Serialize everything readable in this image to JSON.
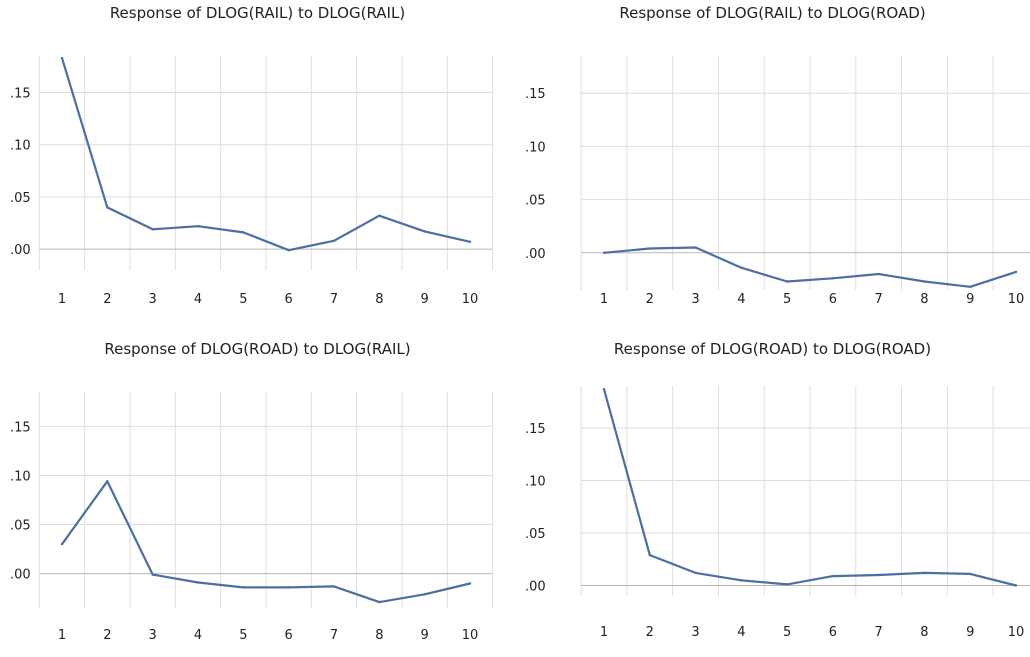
{
  "chart_data": [
    {
      "type": "line",
      "title": "Response of DLOG(RAIL) to DLOG(RAIL)",
      "x": [
        1,
        2,
        3,
        4,
        5,
        6,
        7,
        8,
        9,
        10
      ],
      "values": [
        0.183,
        0.04,
        0.019,
        0.022,
        0.016,
        -0.001,
        0.008,
        0.032,
        0.017,
        0.007
      ],
      "ylim": [
        -0.02,
        0.185
      ],
      "yticks": [
        ".15",
        ".10",
        ".05",
        ".00"
      ],
      "ytick_values": [
        0.15,
        0.1,
        0.05,
        0.0
      ],
      "color": "#4a6fa5",
      "grid": true
    },
    {
      "type": "line",
      "title": "Response of DLOG(RAIL) to DLOG(ROAD)",
      "x": [
        1,
        2,
        3,
        4,
        5,
        6,
        7,
        8,
        9,
        10
      ],
      "values": [
        0.0,
        0.004,
        0.005,
        -0.014,
        -0.027,
        -0.024,
        -0.02,
        -0.027,
        -0.032,
        -0.018
      ],
      "ylim": [
        -0.035,
        0.185
      ],
      "yticks": [
        ".15",
        ".10",
        ".05",
        ".00"
      ],
      "ytick_values": [
        0.15,
        0.1,
        0.05,
        0.0
      ],
      "color": "#4a6fa5",
      "grid": true
    },
    {
      "type": "line",
      "title": "Response of DLOG(ROAD) to DLOG(RAIL)",
      "x": [
        1,
        2,
        3,
        4,
        5,
        6,
        7,
        8,
        9,
        10
      ],
      "values": [
        0.03,
        0.094,
        -0.001,
        -0.009,
        -0.014,
        -0.014,
        -0.013,
        -0.029,
        -0.021,
        -0.01
      ],
      "ylim": [
        -0.035,
        0.185
      ],
      "yticks": [
        ".15",
        ".10",
        ".05",
        ".00"
      ],
      "ytick_values": [
        0.15,
        0.1,
        0.05,
        0.0
      ],
      "color": "#4a6fa5",
      "grid": true
    },
    {
      "type": "line",
      "title": "Response of DLOG(ROAD) to DLOG(ROAD)",
      "x": [
        1,
        2,
        3,
        4,
        5,
        6,
        7,
        8,
        9,
        10
      ],
      "values": [
        0.187,
        0.029,
        0.012,
        0.005,
        0.001,
        0.009,
        0.01,
        0.012,
        0.011,
        0.0
      ],
      "ylim": [
        -0.01,
        0.19
      ],
      "yticks": [
        ".15",
        ".10",
        ".05",
        ".00"
      ],
      "ytick_values": [
        0.15,
        0.1,
        0.05,
        0.0
      ],
      "color": "#4a6fa5",
      "grid": true
    }
  ]
}
